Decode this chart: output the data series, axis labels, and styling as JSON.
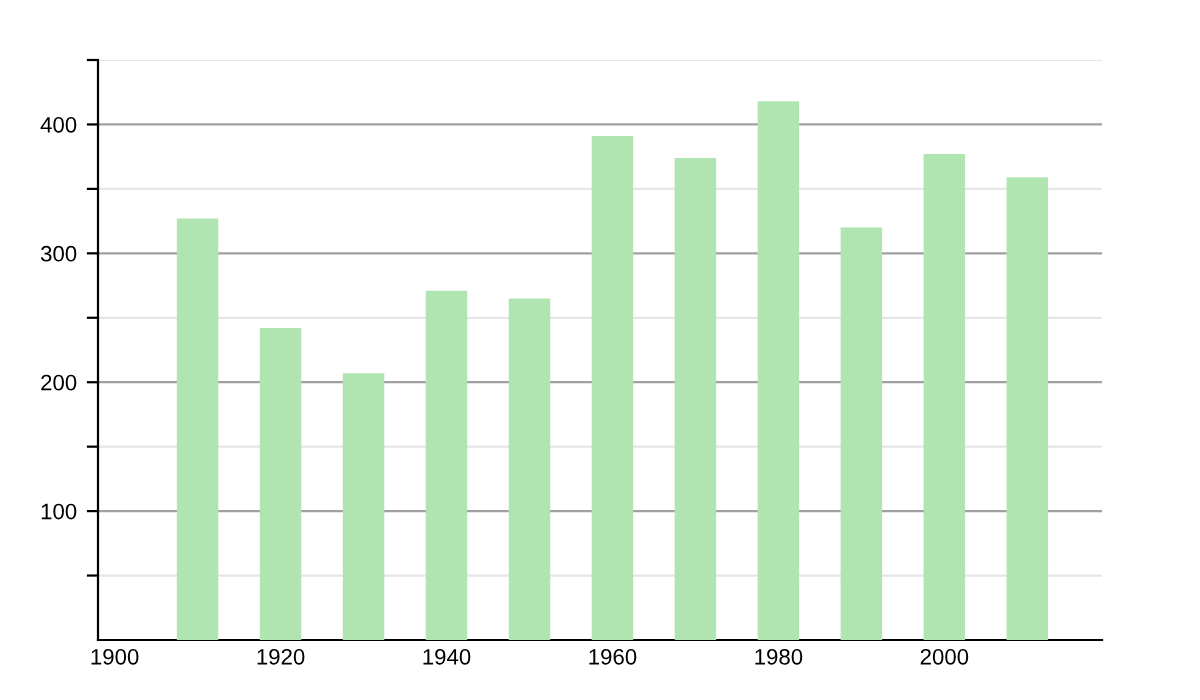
{
  "chart_data": {
    "type": "bar",
    "x": [
      1910,
      1920,
      1930,
      1940,
      1950,
      1960,
      1970,
      1980,
      1990,
      2000,
      2010
    ],
    "values": [
      327,
      242,
      207,
      271,
      265,
      391,
      374,
      418,
      320,
      377,
      359
    ],
    "color": "#b0e4b0",
    "xlim": [
      1898,
      2019
    ],
    "xticks": [
      1900,
      1920,
      1940,
      1960,
      1980,
      2000
    ],
    "ylim": [
      0,
      450
    ],
    "yticks": [
      {
        "value": 50,
        "label": null
      },
      100,
      {
        "value": 150,
        "label": null
      },
      200,
      {
        "value": 250,
        "label": null
      },
      300,
      {
        "value": 350,
        "label": null
      },
      400,
      {
        "value": 450,
        "label": null
      }
    ],
    "grid": "y",
    "legend": false
  }
}
